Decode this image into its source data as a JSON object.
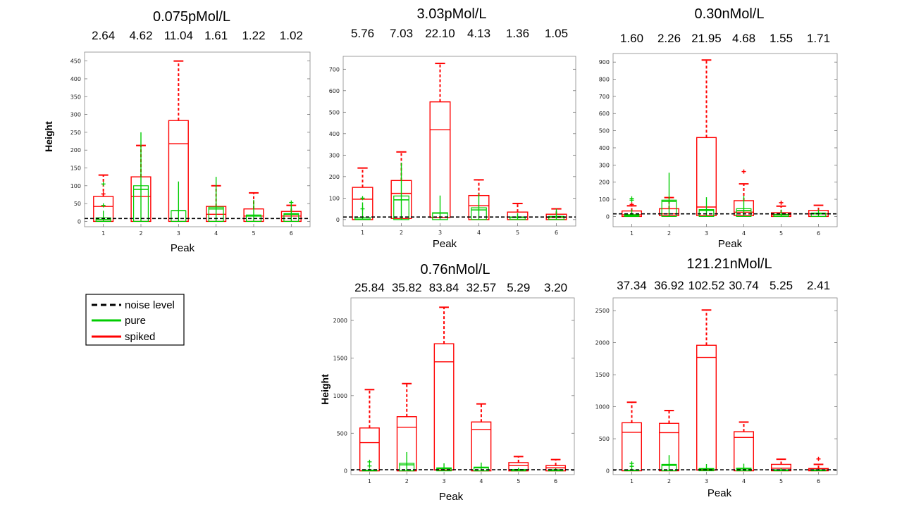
{
  "legend": {
    "items": [
      {
        "label": "noise level",
        "color": "#000000",
        "style": "dashed"
      },
      {
        "label": "pure",
        "color": "#00cc00",
        "style": "solid"
      },
      {
        "label": "spiked",
        "color": "#ff0000",
        "style": "solid"
      }
    ]
  },
  "colors": {
    "spiked": "#ff0000",
    "pure": "#00cc00",
    "noise": "#000000",
    "axes": "#888888"
  },
  "chart_data": [
    {
      "type": "boxplot",
      "title": "0.075pMol/L",
      "ratios": [
        "2.64",
        "4.62",
        "11.04",
        "1.61",
        "1.22",
        "1.02"
      ],
      "xlabel": "Peak",
      "ylabel": "Height",
      "categories": [
        "1",
        "2",
        "3",
        "4",
        "5",
        "6"
      ],
      "ylim": [
        -15,
        475
      ],
      "yticks": [
        0,
        50,
        100,
        150,
        200,
        250,
        300,
        350,
        400,
        450
      ],
      "noise_level": 8,
      "spiked": [
        {
          "q1": 0,
          "median": 42,
          "q3": 70,
          "wlo": 0,
          "whi": 130,
          "outliers": [
            77
          ]
        },
        {
          "q1": 0,
          "median": 70,
          "q3": 125,
          "wlo": 0,
          "whi": 213,
          "outliers": []
        },
        {
          "q1": 0,
          "median": 218,
          "q3": 283,
          "wlo": 0,
          "whi": 450,
          "outliers": []
        },
        {
          "q1": 0,
          "median": 20,
          "q3": 42,
          "wlo": 0,
          "whi": 100,
          "outliers": []
        },
        {
          "q1": 0,
          "median": 15,
          "q3": 35,
          "wlo": 0,
          "whi": 80,
          "outliers": []
        },
        {
          "q1": 0,
          "median": 15,
          "q3": 28,
          "wlo": 0,
          "whi": 45,
          "outliers": []
        }
      ],
      "pure": [
        {
          "q1": 0,
          "median": 5,
          "q3": 10,
          "wlo": 0,
          "whi": 30,
          "outliers": [
            45,
            105
          ]
        },
        {
          "q1": 0,
          "median": 90,
          "q3": 100,
          "wlo": 0,
          "whi": 250,
          "outliers": []
        },
        {
          "q1": 0,
          "median": 30,
          "q3": 30,
          "wlo": 0,
          "whi": 112,
          "outliers": []
        },
        {
          "q1": 0,
          "median": 35,
          "q3": 40,
          "wlo": 0,
          "whi": 125,
          "outliers": []
        },
        {
          "q1": 0,
          "median": 15,
          "q3": 18,
          "wlo": 0,
          "whi": 60,
          "outliers": []
        },
        {
          "q1": 0,
          "median": 20,
          "q3": 22,
          "wlo": 0,
          "whi": 50,
          "outliers": [
            53
          ]
        }
      ]
    },
    {
      "type": "boxplot",
      "title": "3.03pMol/L",
      "ratios": [
        "5.76",
        "7.03",
        "22.10",
        "4.13",
        "1.36",
        "1.05"
      ],
      "xlabel": "Peak",
      "ylabel": "",
      "categories": [
        "1",
        "2",
        "3",
        "4",
        "5",
        "6"
      ],
      "ylim": [
        -30,
        760
      ],
      "yticks": [
        0,
        100,
        200,
        300,
        400,
        500,
        600,
        700
      ],
      "noise_level": 12,
      "spiked": [
        {
          "q1": 0,
          "median": 95,
          "q3": 150,
          "wlo": 0,
          "whi": 240,
          "outliers": []
        },
        {
          "q1": 5,
          "median": 122,
          "q3": 182,
          "wlo": 0,
          "whi": 315,
          "outliers": []
        },
        {
          "q1": 10,
          "median": 418,
          "q3": 548,
          "wlo": 0,
          "whi": 727,
          "outliers": []
        },
        {
          "q1": 0,
          "median": 65,
          "q3": 112,
          "wlo": 0,
          "whi": 185,
          "outliers": []
        },
        {
          "q1": 0,
          "median": 12,
          "q3": 35,
          "wlo": 0,
          "whi": 75,
          "outliers": []
        },
        {
          "q1": 0,
          "median": 10,
          "q3": 25,
          "wlo": 0,
          "whi": 50,
          "outliers": []
        }
      ],
      "pure": [
        {
          "q1": 0,
          "median": 2,
          "q3": 10,
          "wlo": 0,
          "whi": 80,
          "outliers": [
            50,
            100
          ]
        },
        {
          "q1": 0,
          "median": 92,
          "q3": 110,
          "wlo": 0,
          "whi": 265,
          "outliers": []
        },
        {
          "q1": 0,
          "median": 30,
          "q3": 32,
          "wlo": 0,
          "whi": 112,
          "outliers": []
        },
        {
          "q1": 0,
          "median": 45,
          "q3": 55,
          "wlo": 0,
          "whi": 120,
          "outliers": []
        },
        {
          "q1": 0,
          "median": 10,
          "q3": 12,
          "wlo": 0,
          "whi": 30,
          "outliers": []
        },
        {
          "q1": 0,
          "median": 12,
          "q3": 15,
          "wlo": 0,
          "whi": 50,
          "outliers": []
        }
      ]
    },
    {
      "type": "boxplot",
      "title": "0.30nMol/L",
      "ratios": [
        "1.60",
        "2.26",
        "21.95",
        "4.68",
        "1.55",
        "1.71"
      ],
      "xlabel": "Peak",
      "ylabel": "",
      "categories": [
        "1",
        "2",
        "3",
        "4",
        "5",
        "6"
      ],
      "ylim": [
        -60,
        950
      ],
      "yticks": [
        0,
        100,
        200,
        300,
        400,
        500,
        600,
        700,
        800,
        900
      ],
      "noise_level": 15,
      "spiked": [
        {
          "q1": 0,
          "median": 10,
          "q3": 32,
          "wlo": 0,
          "whi": 62,
          "outliers": [
            70
          ]
        },
        {
          "q1": 5,
          "median": 15,
          "q3": 45,
          "wlo": 0,
          "whi": 110,
          "outliers": []
        },
        {
          "q1": 5,
          "median": 55,
          "q3": 460,
          "wlo": 0,
          "whi": 912,
          "outliers": []
        },
        {
          "q1": 5,
          "median": 25,
          "q3": 92,
          "wlo": 0,
          "whi": 190,
          "outliers": [
            262
          ]
        },
        {
          "q1": 0,
          "median": 10,
          "q3": 22,
          "wlo": 0,
          "whi": 60,
          "outliers": [
            80
          ]
        },
        {
          "q1": 0,
          "median": 15,
          "q3": 35,
          "wlo": 0,
          "whi": 65,
          "outliers": []
        }
      ],
      "pure": [
        {
          "q1": 0,
          "median": 5,
          "q3": 10,
          "wlo": 0,
          "whi": 40,
          "outliers": [
            95,
            105
          ]
        },
        {
          "q1": 0,
          "median": 88,
          "q3": 95,
          "wlo": 0,
          "whi": 255,
          "outliers": []
        },
        {
          "q1": 0,
          "median": 35,
          "q3": 40,
          "wlo": 0,
          "whi": 112,
          "outliers": []
        },
        {
          "q1": 0,
          "median": 35,
          "q3": 45,
          "wlo": 0,
          "whi": 120,
          "outliers": []
        },
        {
          "q1": 0,
          "median": 10,
          "q3": 12,
          "wlo": 0,
          "whi": 40,
          "outliers": []
        },
        {
          "q1": 0,
          "median": 15,
          "q3": 20,
          "wlo": 0,
          "whi": 40,
          "outliers": []
        }
      ]
    },
    {
      "type": "boxplot",
      "title": "0.76nMol/L",
      "ratios": [
        "25.84",
        "35.82",
        "83.84",
        "32.57",
        "5.29",
        "3.20"
      ],
      "xlabel": "Peak",
      "ylabel": "Height",
      "categories": [
        "1",
        "2",
        "3",
        "4",
        "5",
        "6"
      ],
      "ylim": [
        -50,
        2300
      ],
      "yticks": [
        0,
        500,
        1000,
        1500,
        2000
      ],
      "noise_level": 15,
      "spiked": [
        {
          "q1": 0,
          "median": 375,
          "q3": 570,
          "wlo": 0,
          "whi": 1080,
          "outliers": []
        },
        {
          "q1": 0,
          "median": 580,
          "q3": 720,
          "wlo": 0,
          "whi": 1160,
          "outliers": []
        },
        {
          "q1": 10,
          "median": 1450,
          "q3": 1690,
          "wlo": 0,
          "whi": 2175,
          "outliers": []
        },
        {
          "q1": 0,
          "median": 550,
          "q3": 650,
          "wlo": 0,
          "whi": 890,
          "outliers": []
        },
        {
          "q1": 0,
          "median": 70,
          "q3": 110,
          "wlo": 0,
          "whi": 190,
          "outliers": []
        },
        {
          "q1": 0,
          "median": 40,
          "q3": 70,
          "wlo": 0,
          "whi": 150,
          "outliers": []
        }
      ],
      "pure": [
        {
          "q1": 0,
          "median": 5,
          "q3": 10,
          "wlo": 0,
          "whi": 30,
          "outliers": [
            65,
            120
          ]
        },
        {
          "q1": 0,
          "median": 80,
          "q3": 100,
          "wlo": 0,
          "whi": 250,
          "outliers": []
        },
        {
          "q1": 0,
          "median": 30,
          "q3": 40,
          "wlo": 0,
          "whi": 100,
          "outliers": []
        },
        {
          "q1": 0,
          "median": 40,
          "q3": 50,
          "wlo": 0,
          "whi": 110,
          "outliers": []
        },
        {
          "q1": 0,
          "median": 15,
          "q3": 18,
          "wlo": 0,
          "whi": 40,
          "outliers": []
        },
        {
          "q1": 0,
          "median": 12,
          "q3": 15,
          "wlo": 0,
          "whi": 35,
          "outliers": []
        }
      ]
    },
    {
      "type": "boxplot",
      "title": "121.21nMol/L",
      "ratios": [
        "37.34",
        "36.92",
        "102.52",
        "30.74",
        "5.25",
        "2.41"
      ],
      "xlabel": "Peak",
      "ylabel": "",
      "categories": [
        "1",
        "2",
        "3",
        "4",
        "5",
        "6"
      ],
      "ylim": [
        -60,
        2700
      ],
      "yticks": [
        0,
        500,
        1000,
        1500,
        2000,
        2500
      ],
      "noise_level": 15,
      "spiked": [
        {
          "q1": 0,
          "median": 600,
          "q3": 750,
          "wlo": 0,
          "whi": 1070,
          "outliers": []
        },
        {
          "q1": 0,
          "median": 595,
          "q3": 740,
          "wlo": 0,
          "whi": 940,
          "outliers": []
        },
        {
          "q1": 10,
          "median": 1770,
          "q3": 1960,
          "wlo": 0,
          "whi": 2510,
          "outliers": []
        },
        {
          "q1": 0,
          "median": 520,
          "q3": 610,
          "wlo": 0,
          "whi": 760,
          "outliers": []
        },
        {
          "q1": 0,
          "median": 40,
          "q3": 100,
          "wlo": 0,
          "whi": 180,
          "outliers": []
        },
        {
          "q1": 0,
          "median": 15,
          "q3": 35,
          "wlo": 0,
          "whi": 100,
          "outliers": [
            185
          ]
        }
      ],
      "pure": [
        {
          "q1": 0,
          "median": 5,
          "q3": 10,
          "wlo": 0,
          "whi": 40,
          "outliers": [
            70,
            115
          ]
        },
        {
          "q1": 0,
          "median": 85,
          "q3": 100,
          "wlo": 0,
          "whi": 245,
          "outliers": []
        },
        {
          "q1": 0,
          "median": 25,
          "q3": 35,
          "wlo": 0,
          "whi": 105,
          "outliers": []
        },
        {
          "q1": 0,
          "median": 30,
          "q3": 40,
          "wlo": 0,
          "whi": 110,
          "outliers": []
        },
        {
          "q1": 0,
          "median": 12,
          "q3": 15,
          "wlo": 0,
          "whi": 40,
          "outliers": []
        },
        {
          "q1": 0,
          "median": 10,
          "q3": 12,
          "wlo": 0,
          "whi": 30,
          "outliers": []
        }
      ]
    }
  ]
}
